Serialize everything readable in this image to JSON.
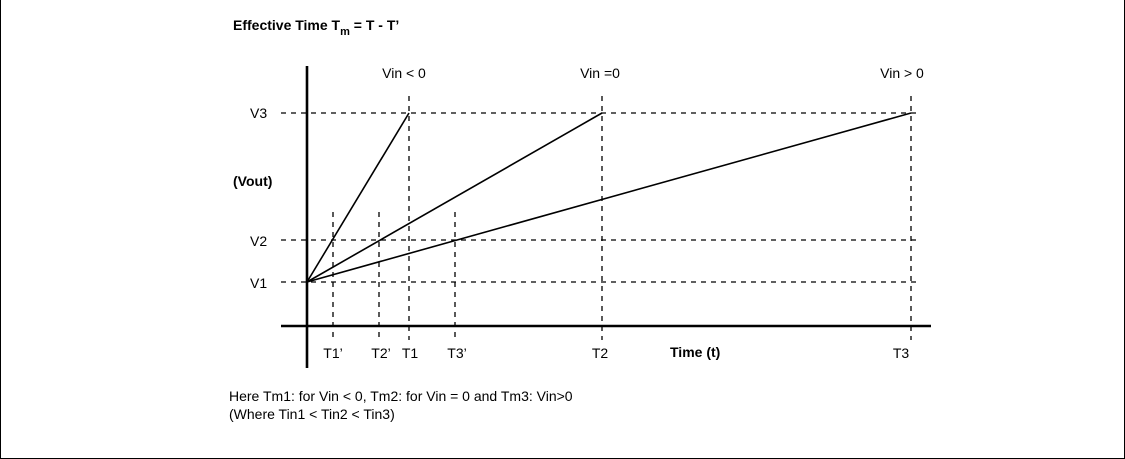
{
  "title": {
    "main": "Effective Time T",
    "sub": "m",
    "rest": " = T - T’"
  },
  "y_axis_label": "(Vout)",
  "x_axis_label": "Time (t)",
  "voltage_levels": [
    "V3",
    "V2",
    "V1"
  ],
  "time_labels": [
    "T1’",
    "T2’",
    "T1",
    "T3’",
    "T2",
    "T3"
  ],
  "conditions": [
    "Vin < 0",
    "Vin =0",
    "Vin > 0"
  ],
  "notes": [
    "Here Tm1: for Vin < 0, Tm2: for Vin = 0 and Tm3: Vin>0",
    "(Where Tin1 < Tin2 < Tin3)"
  ]
}
